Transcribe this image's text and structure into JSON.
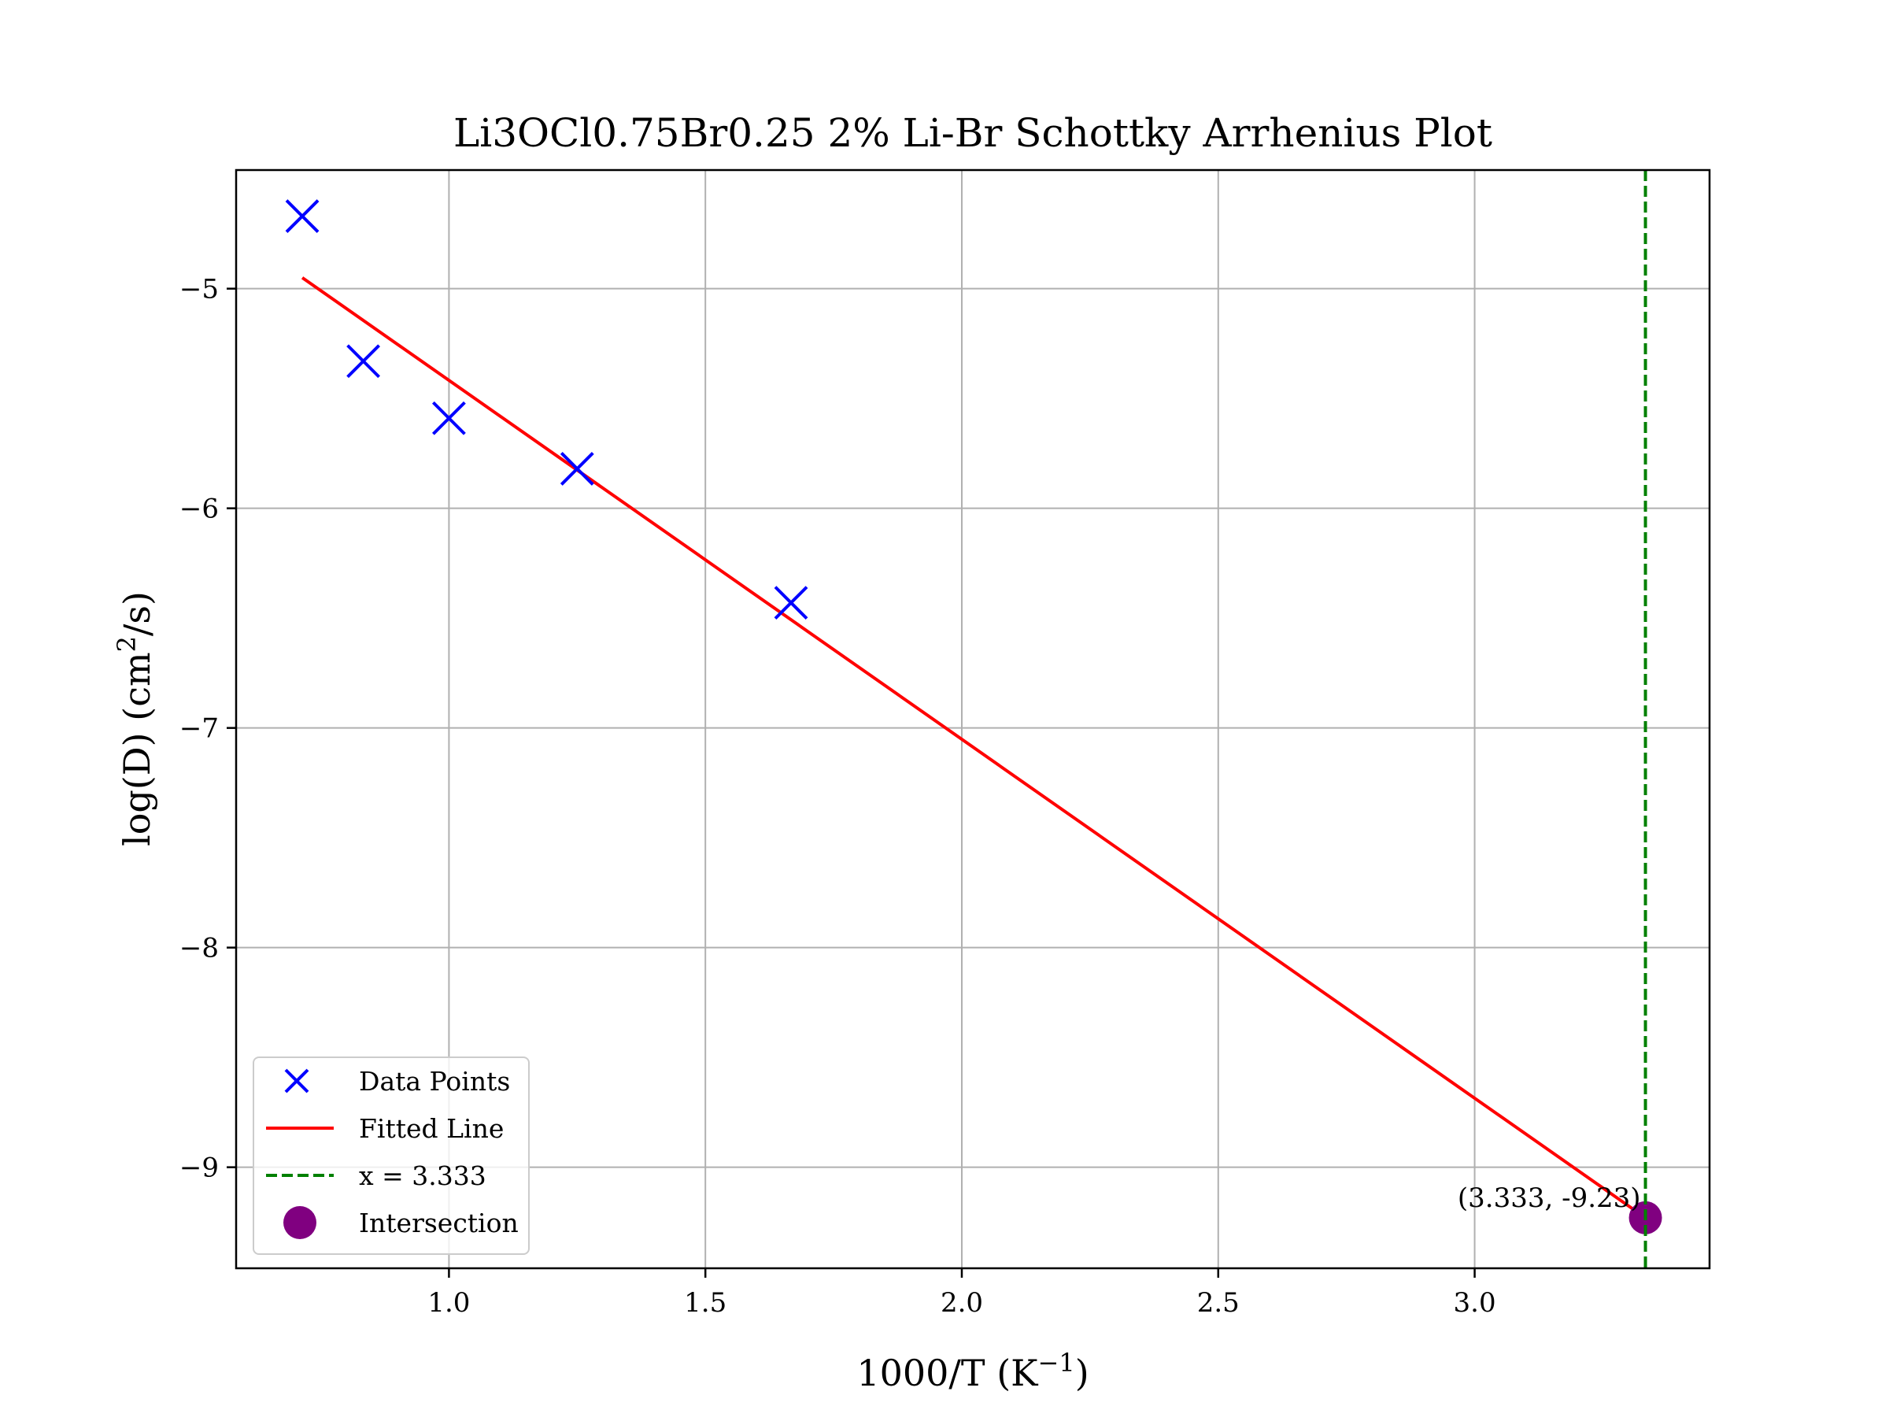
{
  "chart_data": {
    "type": "scatter",
    "title": "Li3OCl0.75Br0.25 2% Li-Br Schottky Arrhenius Plot",
    "xlabel": "1000/T (K",
    "xlabel_sup": "−1",
    "xlabel_end": ")",
    "ylabel": "log(D) (cm",
    "ylabel_sup": "2",
    "ylabel_end": "/s)",
    "xlim": [
      0.585,
      3.458
    ],
    "ylim": [
      -9.46,
      -4.46
    ],
    "grid": true,
    "legend_position": "lower-left",
    "x_ticks": [
      {
        "value": 1.0,
        "label": "1.0"
      },
      {
        "value": 1.5,
        "label": "1.5"
      },
      {
        "value": 2.0,
        "label": "2.0"
      },
      {
        "value": 2.5,
        "label": "2.5"
      },
      {
        "value": 3.0,
        "label": "3.0"
      }
    ],
    "y_ticks": [
      {
        "value": -5,
        "label": "−5"
      },
      {
        "value": -6,
        "label": "−6"
      },
      {
        "value": -7,
        "label": "−7"
      },
      {
        "value": -8,
        "label": "−8"
      },
      {
        "value": -9,
        "label": "−9"
      }
    ],
    "series": [
      {
        "name": "Data Points",
        "kind": "scatter",
        "marker": "x",
        "color": "#0000ff",
        "points": [
          {
            "x": 0.714,
            "y": -4.67
          },
          {
            "x": 0.833,
            "y": -5.33
          },
          {
            "x": 1.0,
            "y": -5.59
          },
          {
            "x": 1.25,
            "y": -5.82
          },
          {
            "x": 1.667,
            "y": -6.43
          }
        ]
      },
      {
        "name": "Fitted Line",
        "kind": "line",
        "color": "#ff0000",
        "points": [
          {
            "x": 0.714,
            "y": -4.95
          },
          {
            "x": 3.333,
            "y": -9.23
          }
        ]
      },
      {
        "name": "x = 3.333",
        "kind": "vline",
        "color": "#008000",
        "x": 3.333
      },
      {
        "name": "Intersection",
        "kind": "point",
        "color": "#800080",
        "x": 3.333,
        "y": -9.23,
        "label": "(3.333, -9.23)"
      }
    ]
  }
}
